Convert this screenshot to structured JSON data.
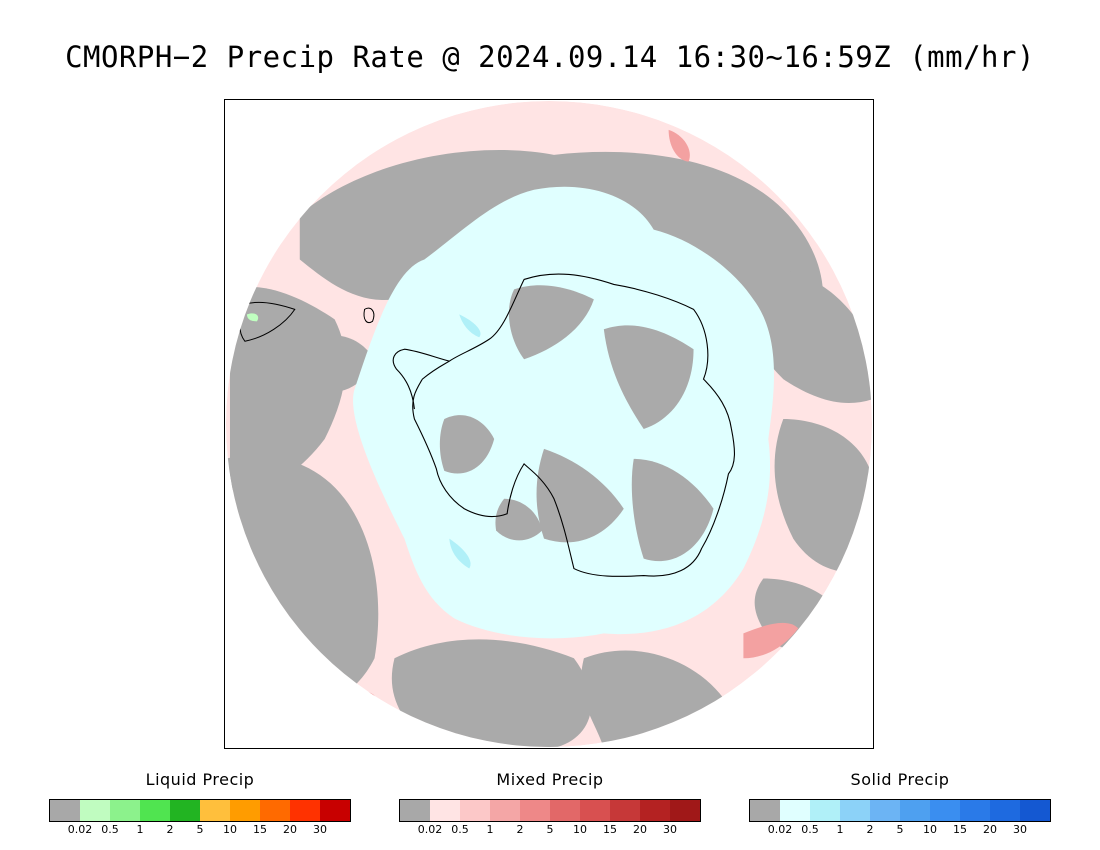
{
  "title": "CMORPH−2 Precip Rate @ 2024.09.14 16:30∼16:59Z (mm/hr)",
  "map": {
    "projection": "south-polar-stereographic",
    "colors": {
      "no_precip": "#aaaaaa",
      "mixed_light": "#ffe4e4",
      "mixed_moderate": "#f3a1a1",
      "solid_light": "#e0ffff",
      "solid_moderate": "#b0f0f8",
      "liquid_light": "#c0ffc0",
      "coastline": "#000000"
    }
  },
  "legends": [
    {
      "title": "Liquid Precip",
      "colors": [
        "#a8a8a8",
        "#c0fcc0",
        "#8cf28c",
        "#50e450",
        "#22b422",
        "#ffbf3c",
        "#ff9c00",
        "#ff6a00",
        "#ff3200",
        "#c80000"
      ],
      "ticks": [
        "0.02",
        "0.5",
        "1",
        "2",
        "5",
        "10",
        "15",
        "20",
        "30"
      ]
    },
    {
      "title": "Mixed Precip",
      "colors": [
        "#a8a8a8",
        "#ffe4e4",
        "#fcc8c8",
        "#f4a6a6",
        "#ee8888",
        "#e26868",
        "#d85050",
        "#c63838",
        "#b42222",
        "#a01818"
      ],
      "ticks": [
        "0.02",
        "0.5",
        "1",
        "2",
        "5",
        "10",
        "15",
        "20",
        "30"
      ]
    },
    {
      "title": "Solid Precip",
      "colors": [
        "#a8a8a8",
        "#e0ffff",
        "#b0f0f8",
        "#8cd2f8",
        "#6cb4f4",
        "#4ea0f0",
        "#3a8ef0",
        "#2a7ae8",
        "#1e6ae0",
        "#1458d2"
      ],
      "ticks": [
        "0.02",
        "0.5",
        "1",
        "2",
        "5",
        "10",
        "15",
        "20",
        "30"
      ]
    }
  ]
}
